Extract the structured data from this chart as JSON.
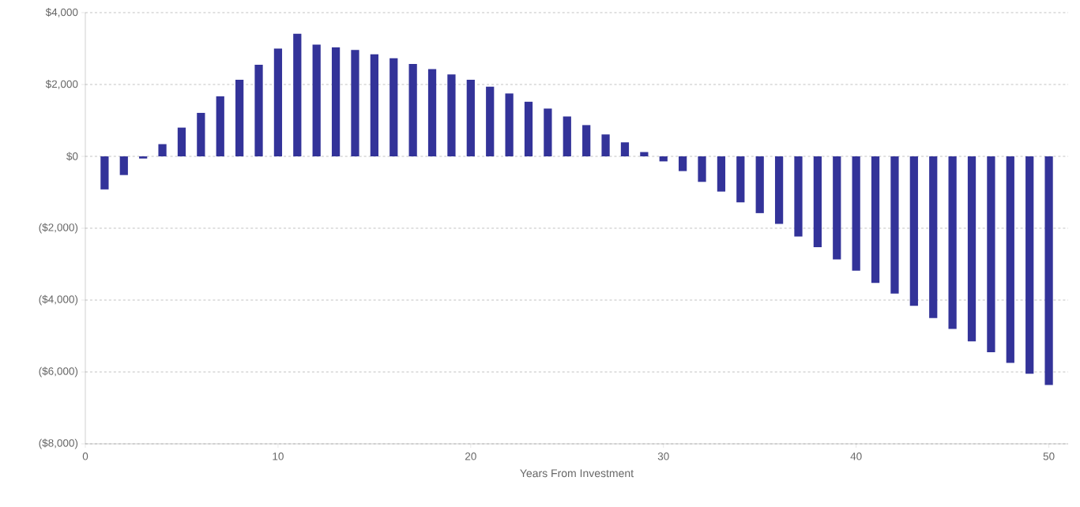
{
  "chart_data": {
    "type": "bar",
    "xlabel": "Years From Investment",
    "x": [
      1,
      2,
      3,
      4,
      5,
      6,
      7,
      8,
      9,
      10,
      11,
      12,
      13,
      14,
      15,
      16,
      17,
      18,
      19,
      20,
      21,
      22,
      23,
      24,
      25,
      26,
      27,
      28,
      29,
      30,
      31,
      32,
      33,
      34,
      35,
      36,
      37,
      38,
      39,
      40,
      41,
      42,
      43,
      44,
      45,
      46,
      47,
      48,
      49,
      50
    ],
    "values": [
      -920,
      -520,
      -60,
      340,
      800,
      1210,
      1670,
      2130,
      2550,
      3000,
      3410,
      3110,
      3030,
      2960,
      2840,
      2730,
      2570,
      2430,
      2280,
      2130,
      1940,
      1750,
      1520,
      1330,
      1110,
      870,
      610,
      390,
      120,
      -140,
      -410,
      -710,
      -980,
      -1280,
      -1580,
      -1880,
      -2230,
      -2530,
      -2870,
      -3180,
      -3520,
      -3820,
      -4160,
      -4500,
      -4800,
      -5150,
      -5450,
      -5750,
      -6050,
      -6360
    ],
    "color": "#333399",
    "xlim": [
      0,
      51
    ],
    "xticks": [
      0,
      10,
      20,
      30,
      40,
      50
    ],
    "ylim": [
      -8000,
      4000
    ],
    "yticks": [
      {
        "value": -8000,
        "label": "($8,000)"
      },
      {
        "value": -6000,
        "label": "($6,000)"
      },
      {
        "value": -4000,
        "label": "($4,000)"
      },
      {
        "value": -2000,
        "label": "($2,000)"
      },
      {
        "value": 0,
        "label": "$0"
      },
      {
        "value": 2000,
        "label": "$2,000"
      },
      {
        "value": 4000,
        "label": "$4,000"
      }
    ],
    "grid": "y"
  }
}
